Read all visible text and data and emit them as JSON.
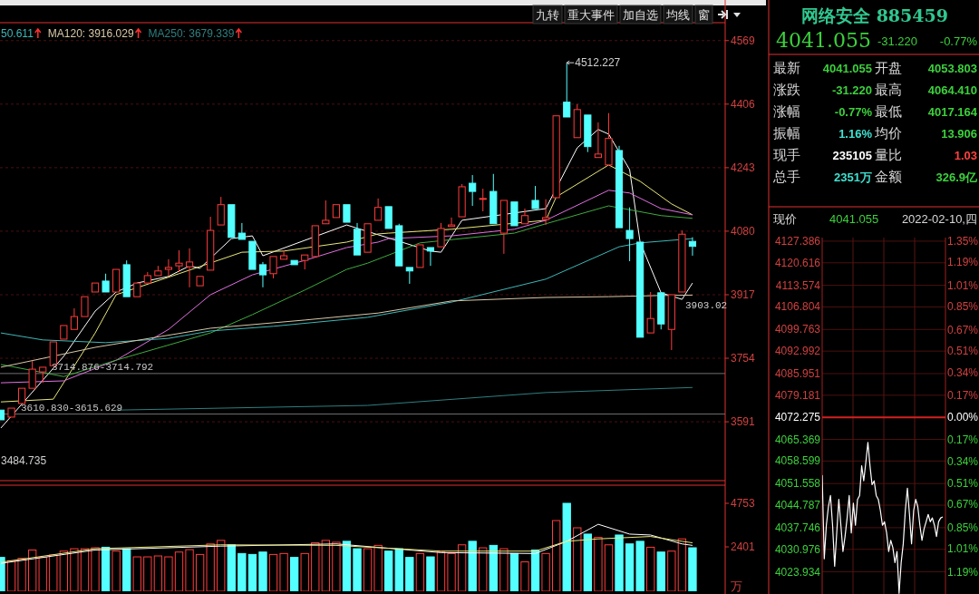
{
  "chart_data": [
    {
      "type": "candlestick",
      "categories": [
        null,
        null,
        null,
        null,
        null,
        null,
        null,
        null,
        null,
        null,
        null,
        null,
        null,
        null,
        null,
        null,
        null,
        null,
        null,
        null,
        null,
        null,
        null,
        null,
        null,
        null,
        null,
        null,
        null,
        null,
        null,
        null,
        null,
        null,
        null,
        null,
        null,
        null,
        null,
        null,
        null,
        null,
        null,
        null,
        null,
        null,
        null,
        null,
        null,
        null,
        null,
        null,
        null,
        null,
        null,
        null,
        null,
        null,
        null,
        null,
        null,
        null,
        null,
        null,
        null,
        null,
        null
      ],
      "ohlc": [
        [
          3621,
          3621,
          3596,
          3596
        ],
        [
          3603,
          3626,
          3603,
          3626
        ],
        [
          3638,
          3677,
          3638,
          3677
        ],
        [
          3677,
          3747,
          3677,
          3726
        ],
        [
          3719,
          3731,
          3691,
          3731
        ],
        [
          3735,
          3796,
          3735,
          3796
        ],
        [
          3803,
          3838,
          3803,
          3838
        ],
        [
          3828,
          3882,
          3828,
          3861
        ],
        [
          3861,
          3912,
          3861,
          3912
        ],
        [
          3924,
          3947,
          3924,
          3947
        ],
        [
          3952,
          3971,
          3924,
          3924
        ],
        [
          3924,
          3982,
          3924,
          3982
        ],
        [
          3994,
          4005,
          3912,
          3912
        ],
        [
          3912,
          3947,
          3912,
          3947
        ],
        [
          3947,
          3975,
          3947,
          3966
        ],
        [
          3966,
          3991,
          3966,
          3978
        ],
        [
          3982,
          4008,
          3964,
          3987
        ],
        [
          3991,
          4031,
          3975,
          3998
        ],
        [
          3989,
          4036,
          3936,
          4001
        ],
        [
          3940,
          3964,
          3940,
          3964
        ],
        [
          3980,
          4117,
          3980,
          4082
        ],
        [
          4096,
          4168,
          4096,
          4148
        ],
        [
          4148,
          4148,
          4064,
          4064
        ],
        [
          4075,
          4101,
          4059,
          4059
        ],
        [
          4054,
          4054,
          3982,
          3982
        ],
        [
          3994,
          4001,
          3936,
          3968
        ],
        [
          3971,
          4015,
          3959,
          4015
        ],
        [
          4008,
          4031,
          4008,
          4017
        ],
        [
          4005,
          4005,
          3994,
          3994
        ],
        [
          4005,
          4019,
          3982,
          4019
        ],
        [
          4015,
          4094,
          4015,
          4094
        ],
        [
          4099,
          4159,
          4099,
          4108
        ],
        [
          4115,
          4148,
          4115,
          4148
        ],
        [
          4148,
          4148,
          4103,
          4103
        ],
        [
          4085,
          4101,
          4019,
          4019
        ],
        [
          4026,
          4099,
          4026,
          4099
        ],
        [
          4108,
          4164,
          4108,
          4141
        ],
        [
          4143,
          4143,
          4087,
          4087
        ],
        [
          4094,
          4099,
          3991,
          3991
        ],
        [
          3987,
          3987,
          3945,
          3978
        ],
        [
          3987,
          4045,
          3987,
          4045
        ],
        [
          4038,
          4038,
          3991,
          4029
        ],
        [
          4040,
          4101,
          4040,
          4087
        ],
        [
          4092,
          4115,
          4092,
          4096
        ],
        [
          4117,
          4201,
          4117,
          4194
        ],
        [
          4203,
          4224,
          4145,
          4182
        ],
        [
          4162,
          4189,
          4131,
          4164
        ],
        [
          4182,
          4227,
          4099,
          4099
        ],
        [
          4075,
          4159,
          4022,
          4159
        ],
        [
          4155,
          4155,
          4094,
          4094
        ],
        [
          4099,
          4138,
          4099,
          4120
        ],
        [
          4159,
          4196,
          4138,
          4138
        ],
        [
          4110,
          4162,
          4096,
          4115
        ],
        [
          4166,
          4376,
          4166,
          4376
        ],
        [
          4411,
          4512.227,
          4373,
          4373
        ],
        [
          4320,
          4406,
          4320,
          4392
        ],
        [
          4378,
          4378,
          4283,
          4297
        ],
        [
          4269,
          4359,
          4269,
          4278
        ],
        [
          4250,
          4383,
          4250,
          4318
        ],
        [
          4287,
          4299,
          4089,
          4089
        ],
        [
          4082,
          4141,
          4003,
          4061
        ],
        [
          4052,
          4052,
          3808,
          3808
        ],
        [
          3819,
          3924,
          3819,
          3856
        ],
        [
          3922,
          3922,
          3828,
          3842
        ],
        [
          3828,
          3917,
          3775,
          3917
        ],
        [
          3924,
          4082,
          3924,
          4072.275
        ],
        [
          4053.803,
          4064.41,
          4017.164,
          4041.055
        ]
      ],
      "series": [
        {
          "type": "line",
          "color": "#ffffff",
          "values": [
            3575,
            null,
            null,
            null,
            null,
            null,
            3759,
            null,
            null,
            3875,
            null,
            3924,
            null,
            3947,
            null,
            null,
            3964,
            null,
            3991,
            3985,
            null,
            null,
            4061,
            null,
            4068,
            4017,
            null,
            null,
            null,
            null,
            null,
            null,
            null,
            4096,
            null,
            null,
            null,
            null,
            null,
            null,
            null,
            4029,
            4026,
            null,
            4108,
            null,
            null,
            null,
            null,
            null,
            null,
            null,
            4138,
            null,
            null,
            4294,
            null,
            4341,
            4329,
            null,
            4238,
            4052,
            null,
            3922,
            null,
            3905,
            3947
          ]
        },
        {
          "type": "line",
          "color": "#e8e87a",
          "values": [
            3642,
            null,
            null,
            null,
            null,
            3649,
            null,
            null,
            null,
            3819,
            null,
            3917,
            null,
            null,
            null,
            null,
            null,
            3971,
            null,
            null,
            null,
            null,
            null,
            4026,
            null,
            null,
            null,
            4029,
            null,
            null,
            null,
            null,
            null,
            4052,
            null,
            null,
            4073,
            4075,
            null,
            null,
            null,
            null,
            null,
            4085,
            null,
            null,
            null,
            null,
            null,
            null,
            null,
            null,
            4108,
            4168,
            null,
            null,
            null,
            null,
            4250,
            null,
            null,
            4208,
            null,
            null,
            4150,
            null,
            4122
          ]
        },
        {
          "type": "line",
          "color": "#e070e0",
          "values": [
            3691,
            null,
            null,
            null,
            null,
            null,
            3696,
            null,
            null,
            null,
            null,
            3749,
            null,
            null,
            null,
            null,
            3828,
            null,
            null,
            null,
            3917,
            null,
            null,
            null,
            3968,
            null,
            null,
            null,
            null,
            4005,
            null,
            null,
            null,
            4038,
            null,
            null,
            4052,
            4061,
            null,
            null,
            null,
            null,
            null,
            4068,
            null,
            null,
            null,
            null,
            null,
            4085,
            null,
            null,
            4108,
            null,
            null,
            null,
            null,
            null,
            4185,
            null,
            4178,
            null,
            null,
            4138,
            null,
            null,
            4122
          ]
        },
        {
          "type": "line",
          "color": "#3faa3f",
          "values": [
            3738,
            null,
            null,
            null,
            null,
            null,
            3707,
            null,
            null,
            null,
            null,
            3749,
            null,
            null,
            null,
            null,
            null,
            null,
            null,
            null,
            3819,
            null,
            null,
            null,
            3866,
            null,
            null,
            null,
            null,
            3929,
            null,
            null,
            null,
            3982,
            null,
            3998,
            null,
            null,
            null,
            null,
            4050,
            null,
            null,
            null,
            null,
            null,
            null,
            null,
            null,
            4075,
            null,
            null,
            4099,
            null,
            null,
            null,
            null,
            null,
            4145,
            null,
            null,
            null,
            null,
            4120,
            null,
            null,
            4113
          ]
        },
        {
          "type": "line",
          "color": "#3fb7b7",
          "values": [
            3819,
            null,
            null,
            null,
            3801,
            null,
            null,
            null,
            null,
            null,
            3794,
            null,
            null,
            null,
            null,
            null,
            3805,
            null,
            null,
            null,
            3824,
            null,
            null,
            null,
            null,
            null,
            3836,
            null,
            null,
            null,
            null,
            null,
            null,
            null,
            null,
            3859,
            null,
            null,
            null,
            null,
            null,
            null,
            null,
            3898,
            null,
            null,
            null,
            null,
            null,
            null,
            null,
            null,
            3957,
            null,
            null,
            null,
            null,
            null,
            null,
            4040,
            null,
            4050,
            null,
            null,
            null,
            null,
            4061
          ]
        },
        {
          "type": "line",
          "color": "#d8c8a8",
          "values": [
            3731,
            null,
            null,
            null,
            null,
            null,
            null,
            null,
            null,
            3782,
            null,
            null,
            null,
            null,
            null,
            null,
            null,
            null,
            null,
            null,
            3831,
            null,
            null,
            null,
            null,
            null,
            null,
            null,
            null,
            3852,
            null,
            null,
            null,
            null,
            null,
            null,
            3870,
            null,
            null,
            null,
            null,
            null,
            null,
            3901,
            null,
            null,
            null,
            null,
            null,
            null,
            null,
            null,
            3910,
            null,
            null,
            null,
            null,
            null,
            3912,
            null,
            null,
            null,
            null,
            3915,
            null,
            null,
            3916
          ]
        },
        {
          "type": "line",
          "color": "#2f7f7f",
          "values": [
            null,
            null,
            null,
            null,
            null,
            null,
            null,
            null,
            null,
            null,
            null,
            3621,
            null,
            null,
            null,
            null,
            null,
            null,
            null,
            null,
            null,
            null,
            null,
            null,
            null,
            null,
            null,
            null,
            null,
            null,
            null,
            null,
            null,
            null,
            null,
            3633,
            null,
            null,
            null,
            null,
            null,
            null,
            null,
            null,
            null,
            null,
            null,
            null,
            null,
            null,
            null,
            null,
            3666,
            null,
            null,
            null,
            null,
            null,
            null,
            null,
            null,
            null,
            null,
            null,
            null,
            null,
            3679
          ]
        }
      ],
      "ylim": [
        3440,
        4608
      ],
      "yticks": [
        3591,
        3754,
        3917,
        4080,
        4243,
        4406,
        4569
      ],
      "grid": "y",
      "tick_labels": "y",
      "ref_lines": [
        {
          "axis": "y",
          "value": 3714.876,
          "label": "3714.876-3714.792",
          "color": "#707070"
        },
        {
          "axis": "y",
          "value": 3610.83,
          "label": "3610.830-3615.629",
          "color": "#707070"
        }
      ],
      "annotations": [
        "50.611",
        "MA120: 3916.029",
        "MA250: 3679.339",
        "4512.227",
        "3903.02",
        "3484.735"
      ]
    },
    {
      "type": "bar",
      "categories": [
        null,
        null,
        null,
        null,
        null,
        null,
        null,
        null,
        null,
        null,
        null,
        null,
        null,
        null,
        null,
        null,
        null,
        null,
        null,
        null,
        null,
        null,
        null,
        null,
        null,
        null,
        null,
        null,
        null,
        null,
        null,
        null,
        null,
        null,
        null,
        null,
        null,
        null,
        null,
        null,
        null,
        null,
        null,
        null,
        null,
        null,
        null,
        null,
        null,
        null,
        null,
        null,
        null,
        null,
        null,
        null,
        null,
        null,
        null,
        null,
        null,
        null,
        null,
        null,
        null,
        null,
        null
      ],
      "colors": [
        "#54ffff",
        "#ff3c3c",
        "#ff3c3c",
        "#ff3c3c",
        "#ff3c3c",
        "#ff3c3c",
        "#ff3c3c",
        "#ff3c3c",
        "#ff3c3c",
        "#ff3c3c",
        "#54ffff",
        "#ff3c3c",
        "#54ffff",
        "#ff3c3c",
        "#ff3c3c",
        "#ff3c3c",
        "#ff3c3c",
        "#ff3c3c",
        "#ff3c3c",
        "#ff3c3c",
        "#ff3c3c",
        "#ff3c3c",
        "#54ffff",
        "#54ffff",
        "#54ffff",
        "#54ffff",
        "#ff3c3c",
        "#ff3c3c",
        "#54ffff",
        "#ff3c3c",
        "#ff3c3c",
        "#ff3c3c",
        "#ff3c3c",
        "#54ffff",
        "#54ffff",
        "#ff3c3c",
        "#ff3c3c",
        "#54ffff",
        "#54ffff",
        "#54ffff",
        "#ff3c3c",
        "#54ffff",
        "#ff3c3c",
        "#ff3c3c",
        "#ff3c3c",
        "#54ffff",
        "#ff3c3c",
        "#54ffff",
        "#ff3c3c",
        "#54ffff",
        "#ff3c3c",
        "#54ffff",
        "#ff3c3c",
        "#ff3c3c",
        "#54ffff",
        "#ff3c3c",
        "#54ffff",
        "#ff3c3c",
        "#ff3c3c",
        "#54ffff",
        "#54ffff",
        "#54ffff",
        "#ff3c3c",
        "#54ffff",
        "#ff3c3c",
        "#ff3c3c",
        "#54ffff"
      ],
      "values": [
        1830,
        1650,
        1780,
        2230,
        1830,
        1960,
        2170,
        2300,
        2300,
        2350,
        2380,
        2170,
        2300,
        1860,
        1860,
        1910,
        1860,
        2120,
        2250,
        1990,
        2560,
        2750,
        2510,
        2040,
        1990,
        2120,
        1990,
        2040,
        1830,
        2040,
        2620,
        2750,
        2650,
        2700,
        2300,
        2300,
        2480,
        2170,
        2300,
        1830,
        2040,
        1860,
        2120,
        2040,
        2510,
        2700,
        2350,
        2480,
        2300,
        2040,
        1590,
        2230,
        2040,
        3820,
        4753,
        3430,
        3090,
        2910,
        2510,
        3040,
        2560,
        2700,
        2380,
        2120,
        2170,
        2830,
        2351
      ],
      "series": [
        {
          "type": "line",
          "color": "#ffffff",
          "values": [
            1510,
            null,
            null,
            null,
            null,
            null,
            null,
            null,
            null,
            2230,
            null,
            null,
            null,
            null,
            null,
            null,
            null,
            null,
            null,
            null,
            null,
            2440,
            null,
            null,
            null,
            null,
            null,
            null,
            null,
            null,
            null,
            null,
            2560,
            null,
            null,
            null,
            null,
            null,
            null,
            null,
            null,
            null,
            2090,
            null,
            null,
            null,
            null,
            null,
            null,
            null,
            null,
            2040,
            null,
            null,
            2700,
            null,
            null,
            3620,
            null,
            null,
            3090,
            null,
            3040,
            null,
            null,
            2560,
            2480
          ]
        },
        {
          "type": "line",
          "color": "#e8e87a",
          "values": [
            1570,
            null,
            null,
            null,
            null,
            null,
            null,
            null,
            null,
            2300,
            null,
            null,
            null,
            null,
            null,
            null,
            null,
            null,
            null,
            null,
            null,
            2510,
            null,
            null,
            null,
            null,
            null,
            null,
            null,
            null,
            null,
            null,
            2480,
            null,
            null,
            null,
            null,
            null,
            null,
            null,
            null,
            null,
            2170,
            null,
            null,
            null,
            null,
            null,
            null,
            null,
            null,
            2170,
            null,
            null,
            2700,
            null,
            null,
            2830,
            null,
            null,
            null,
            null,
            2960,
            null,
            null,
            2700,
            2620
          ]
        }
      ],
      "ylim": [
        0,
        5635
      ],
      "yticks": [
        2401,
        4753
      ],
      "ylabel": "万",
      "tick_labels": "y"
    },
    {
      "type": "other",
      "title": "网络安全 885459",
      "annotations": [
        "4041.055",
        "-31.220",
        "-0.77%",
        "最新",
        "4041.055",
        "开盘",
        "4053.803",
        "涨跌",
        "-31.220",
        "最高",
        "4064.410",
        "涨幅",
        "-0.77%",
        "最低",
        "4017.164",
        "振幅",
        "1.16%",
        "均价",
        "13.906",
        "现手",
        "235105",
        "量比",
        "1.03",
        "总手",
        "2351万",
        "金额",
        "326.9亿",
        "九转",
        "重大事件",
        "加自选",
        "均线",
        "窗"
      ]
    },
    {
      "type": "line",
      "categories": [
        null,
        null,
        null,
        null,
        null,
        null,
        null,
        null,
        null,
        null,
        null,
        null,
        null,
        null,
        null,
        null,
        null,
        null,
        null,
        null,
        null,
        null,
        null,
        null,
        null,
        null,
        null,
        null,
        null,
        null,
        null,
        null,
        null,
        null,
        null,
        null,
        null,
        null,
        null,
        null,
        null,
        null,
        null,
        null,
        null,
        null,
        null,
        null,
        null,
        null,
        null,
        null,
        null,
        null,
        null,
        null,
        null,
        null,
        null
      ],
      "series": [
        {
          "color": "#ffffff",
          "values": [
            4054.2,
            4028.0,
            4038.5,
            4044.3,
            4047.8,
            4038.5,
            4025.7,
            4036.1,
            4046.6,
            4038.5,
            4030.3,
            4035.0,
            4040.8,
            4047.8,
            4036.1,
            4045.4,
            4038.5,
            4046.6,
            4047.8,
            4057.1,
            4052.4,
            4058.2,
            4064.4,
            4057.1,
            4051.2,
            4052.4,
            4047.8,
            4046.6,
            4043.1,
            4038.5,
            4039.6,
            4036.1,
            4030.3,
            4033.8,
            4031.5,
            4026.8,
            4030.3,
            4017.2,
            4026.8,
            4032.7,
            4043.1,
            4050.1,
            4041.9,
            4032.7,
            4043.1,
            4046.6,
            4044.3,
            4038.5,
            4033.8,
            4037.3,
            4039.6,
            4041.9,
            4039.6,
            4040.8,
            4038.5,
            4035.0,
            4039.6,
            4040.8,
            4041.1
          ]
        }
      ],
      "ylim": [
        4017,
        4128.5
      ],
      "yticks": [
        4127.386,
        4120.616,
        4113.574,
        4106.804,
        4099.763,
        4092.992,
        4085.951,
        4079.181,
        4072.275,
        4065.369,
        4058.599,
        4051.558,
        4044.787,
        4037.746,
        4030.976,
        4023.934
      ],
      "y2lim": [
        -1.357,
        1.381
      ],
      "y2ticks": [
        {
          "value": 1.35,
          "label": "1.35%"
        },
        {
          "value": 1.19,
          "label": "1.19%"
        },
        {
          "value": 1.01,
          "label": "1.01%"
        },
        {
          "value": 0.85,
          "label": "0.85%"
        },
        {
          "value": 0.67,
          "label": "0.67%"
        },
        {
          "value": 0.51,
          "label": "0.51%"
        },
        {
          "value": 0.34,
          "label": "0.34%"
        },
        {
          "value": 0.17,
          "label": "0.17%"
        },
        {
          "value": 0,
          "label": "0.00%"
        },
        {
          "value": -0.17,
          "label": "0.17%"
        },
        {
          "value": -0.34,
          "label": "0.34%"
        },
        {
          "value": -0.51,
          "label": "0.51%"
        },
        {
          "value": -0.67,
          "label": "0.67%"
        },
        {
          "value": -0.85,
          "label": "0.85%"
        },
        {
          "value": -1.01,
          "label": "1.01%"
        },
        {
          "value": -1.19,
          "label": "1.19%"
        }
      ],
      "grid": true,
      "tick_labels": "y",
      "ref_lines": [
        {
          "axis": "y",
          "value": 4072.275,
          "color": "#d02020"
        }
      ],
      "annotations": [
        "现价",
        "4041.055",
        "2022-02-10,四"
      ]
    }
  ]
}
